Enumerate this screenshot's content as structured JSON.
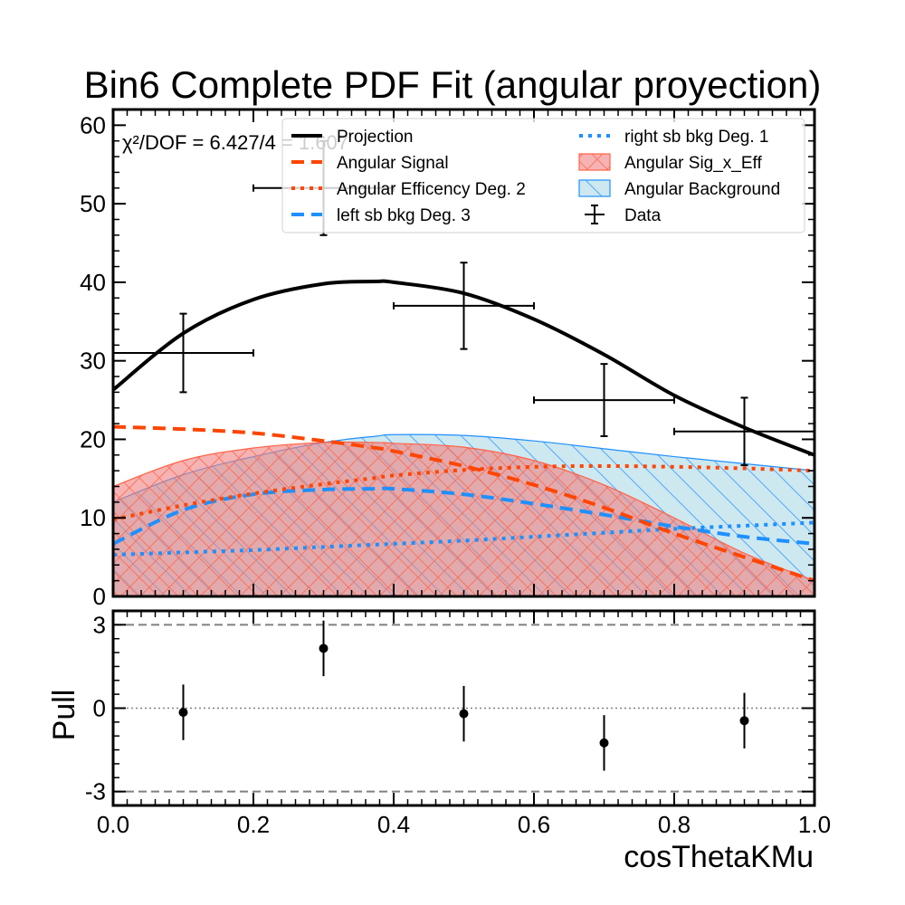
{
  "title": "Bin6 Complete PDF Fit (angular proyection)",
  "chi2_text": "χ²/DOF = 6.427/4 = 1.607",
  "colors": {
    "projection": "#000000",
    "signal": "#ff4500",
    "efficiency": "#ff4500",
    "left_bkg": "#1e90ff",
    "right_bkg": "#1e90ff",
    "sig_x_eff_fill": "#f08080",
    "sig_x_eff_edge": "#ff6347",
    "background_fill": "#add8e6",
    "background_edge": "#1e90ff",
    "data": "#000000"
  },
  "chart_data": [
    {
      "type": "line",
      "panel": "main",
      "xlabel": "",
      "ylabel": "",
      "xlim": [
        0.0,
        1.0
      ],
      "ylim": [
        0,
        62
      ],
      "yticks": [
        0,
        10,
        20,
        30,
        40,
        50,
        60
      ],
      "ytick_labels": [
        "0",
        "10",
        "20",
        "30",
        "40",
        "50",
        "60"
      ],
      "legend_position": "top-right",
      "legend": [
        "Projection",
        "Angular Signal",
        "Angular Efficency Deg. 2",
        "left sb bkg Deg. 3",
        "right sb bkg Deg. 1",
        "Angular Sig_x_Eff",
        "Angular Background",
        "Data"
      ],
      "x": [
        0.0,
        0.1,
        0.2,
        0.3,
        0.375,
        0.4,
        0.5,
        0.6,
        0.7,
        0.8,
        0.9,
        1.0
      ],
      "series": [
        {
          "name": "Projection",
          "style": "solid",
          "values": [
            26.3,
            33.5,
            37.8,
            39.8,
            40.1,
            40.0,
            38.6,
            35.3,
            30.8,
            25.6,
            21.5,
            18.0
          ]
        },
        {
          "name": "Angular Signal",
          "style": "dashed",
          "values": [
            21.6,
            21.3,
            20.8,
            19.8,
            18.9,
            18.5,
            16.6,
            14.2,
            11.3,
            8.0,
            5.0,
            2.0
          ]
        },
        {
          "name": "Angular Efficency Deg. 2",
          "style": "dotted",
          "values": [
            9.8,
            11.6,
            13.1,
            14.3,
            15.1,
            15.4,
            16.1,
            16.5,
            16.6,
            16.5,
            16.3,
            16.0
          ]
        },
        {
          "name": "left sb bkg Deg. 3",
          "style": "dashed",
          "values": [
            6.7,
            11.0,
            13.0,
            13.6,
            13.7,
            13.7,
            13.0,
            11.8,
            10.4,
            8.9,
            7.6,
            6.7
          ]
        },
        {
          "name": "right sb bkg Deg. 1",
          "style": "dotted",
          "values": [
            5.3,
            5.6,
            5.9,
            6.3,
            6.6,
            6.7,
            7.1,
            7.6,
            8.1,
            8.6,
            9.0,
            9.4
          ]
        }
      ],
      "areas": [
        {
          "name": "Angular Background",
          "hatch": "\\\\",
          "values": [
            12.0,
            15.5,
            17.8,
            19.6,
            20.4,
            20.6,
            20.5,
            19.8,
            18.8,
            17.8,
            16.9,
            16.0
          ]
        },
        {
          "name": "Angular Sig_x_Eff",
          "hatch": "xx",
          "values": [
            14.0,
            17.3,
            18.9,
            19.6,
            19.6,
            19.5,
            19.0,
            17.3,
            14.2,
            10.0,
            5.5,
            2.0
          ]
        }
      ],
      "data_points": {
        "name": "Data",
        "x": [
          0.1,
          0.3,
          0.5,
          0.7,
          0.9
        ],
        "xerr": [
          0.1,
          0.1,
          0.1,
          0.1,
          0.1
        ],
        "y": [
          31,
          52,
          37,
          25,
          21
        ],
        "yerr": [
          5.0,
          6.0,
          5.5,
          4.6,
          4.3
        ]
      }
    },
    {
      "type": "scatter",
      "panel": "pull",
      "xlabel": "cosThetaKMu",
      "ylabel": "Pull",
      "xlim": [
        0.0,
        1.0
      ],
      "ylim": [
        -3.5,
        3.5
      ],
      "xticks": [
        0.0,
        0.2,
        0.4,
        0.6,
        0.8,
        1.0
      ],
      "xtick_labels": [
        "0.0",
        "0.2",
        "0.4",
        "0.6",
        "0.8",
        "1.0"
      ],
      "yticks": [
        -3,
        0,
        3
      ],
      "ytick_labels": [
        "-3",
        "0",
        "3"
      ],
      "reference_lines": [
        -3,
        0,
        3
      ],
      "x": [
        0.1,
        0.3,
        0.5,
        0.7,
        0.9
      ],
      "values": [
        -0.15,
        2.15,
        -0.2,
        -1.25,
        -0.45
      ],
      "yerr": [
        1.0,
        1.0,
        1.0,
        1.0,
        1.0
      ]
    }
  ]
}
